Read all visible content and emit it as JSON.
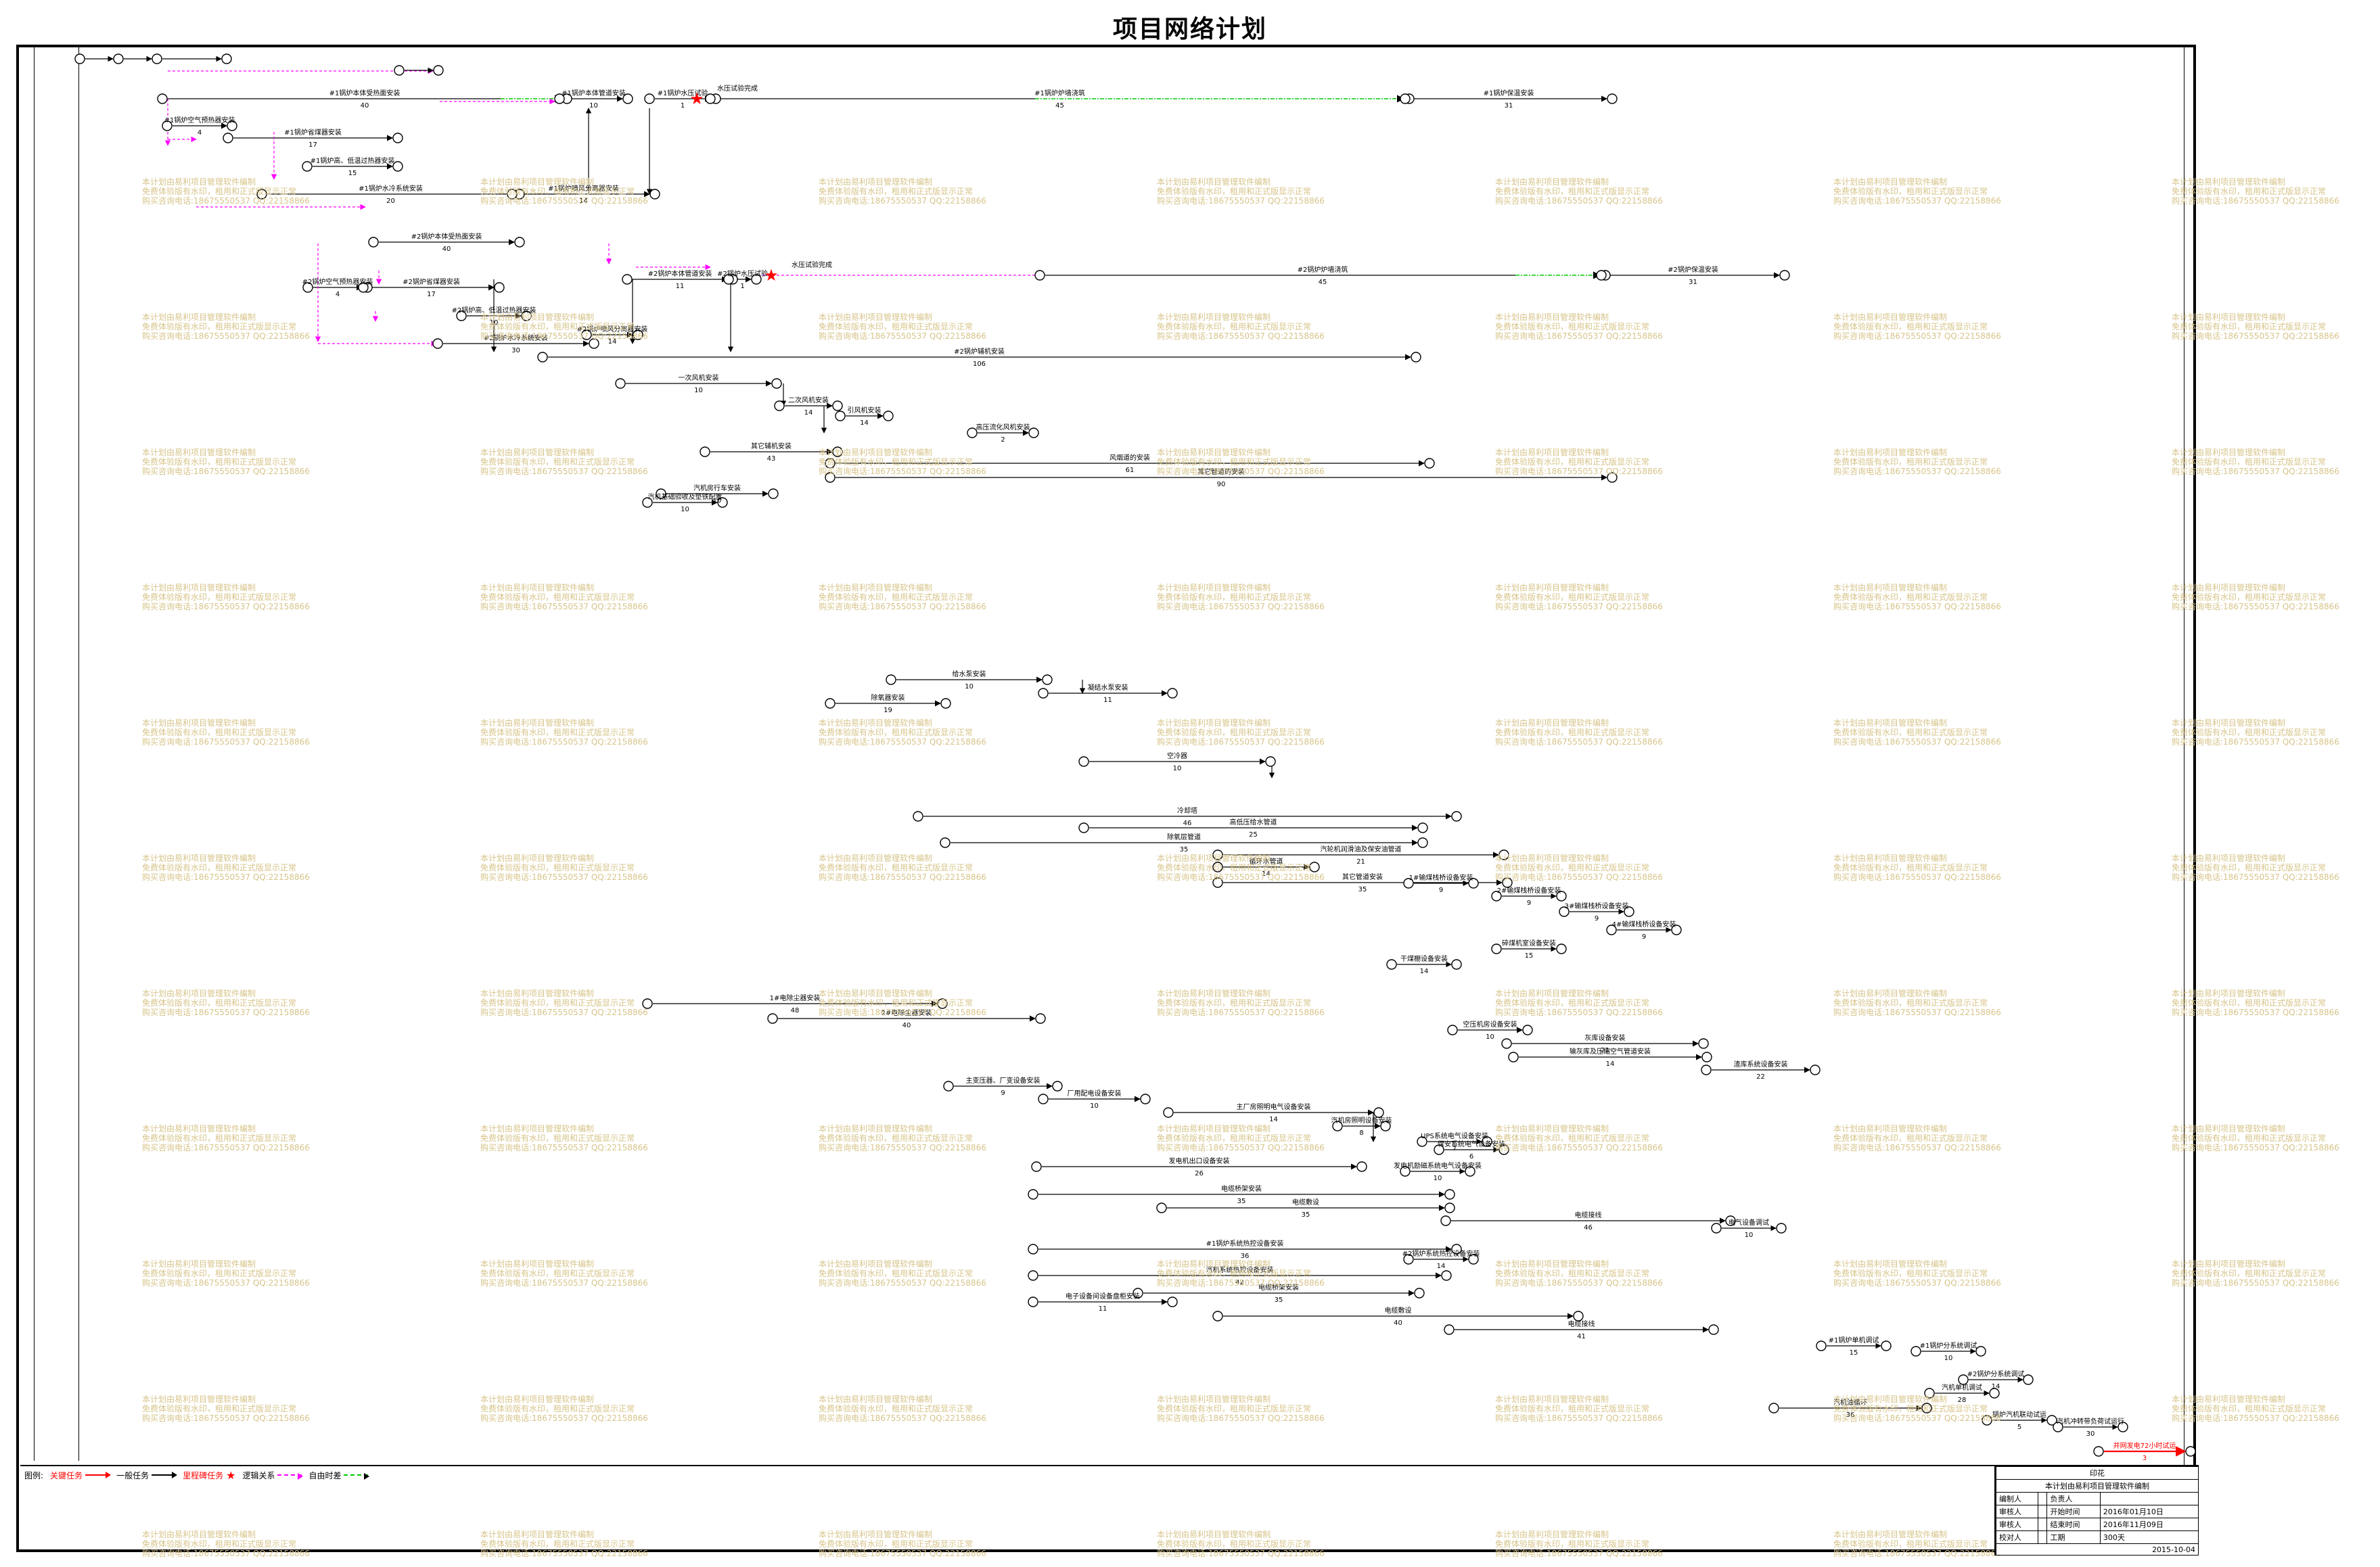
{
  "title": "项目网络计划",
  "watermark": {
    "lines": [
      "本计划由易利项目管理软件编制",
      "免费体验版有水印，租用和正式版显示正常",
      "购买咨询电话:18675550537 QQ:22158866"
    ]
  },
  "tasks": [
    {
      "label": "#1锅炉本体受热面安装",
      "duration": "40"
    },
    {
      "label": "#1锅炉空气预热器安装",
      "duration": "4"
    },
    {
      "label": "#1锅炉省煤器安装",
      "duration": "17"
    },
    {
      "label": "#1锅炉高、低温过热器安装",
      "duration": "15"
    },
    {
      "label": "#1锅炉水冷系统安装",
      "duration": "20"
    },
    {
      "label": "#1锅炉喷风分离器安装",
      "duration": "14"
    },
    {
      "label": "#1锅炉本体管道安装",
      "duration": "10"
    },
    {
      "label": "#1锅炉水压试验",
      "duration": "1"
    },
    {
      "label": "水压试验完成",
      "duration": ""
    },
    {
      "label": "#1锅炉炉墙浇筑",
      "duration": "45"
    },
    {
      "label": "#1锅炉保温安装",
      "duration": "31"
    },
    {
      "label": "#2锅炉本体受热面安装",
      "duration": "40"
    },
    {
      "label": "#2锅炉空气预热器安装",
      "duration": "4"
    },
    {
      "label": "#2锅炉省煤器安装",
      "duration": "17"
    },
    {
      "label": "#2锅炉高、低温过热器安装",
      "duration": "10"
    },
    {
      "label": "#2锅炉水冷系统安装",
      "duration": "30"
    },
    {
      "label": "#2锅炉喷风分离器安装",
      "duration": "14"
    },
    {
      "label": "#2锅炉本体管道安装",
      "duration": "11"
    },
    {
      "label": "#2锅炉水压试验",
      "duration": "1"
    },
    {
      "label": "#2锅炉炉墙浇筑",
      "duration": "45"
    },
    {
      "label": "#2锅炉保温安装",
      "duration": "31"
    },
    {
      "label": "#2锅炉辅机安装",
      "duration": "106"
    },
    {
      "label": "一次风机安装",
      "duration": "10"
    },
    {
      "label": "二次风机安装",
      "duration": "14"
    },
    {
      "label": "引风机安装",
      "duration": "14"
    },
    {
      "label": "高压流化风机安装",
      "duration": "2"
    },
    {
      "label": "其它辅机安装",
      "duration": "43"
    },
    {
      "label": "风烟道的安装",
      "duration": "61"
    },
    {
      "label": "其它管道的安装",
      "duration": "90"
    },
    {
      "label": "汽机房行车安装",
      "duration": "10"
    },
    {
      "label": "汽机基础验收及垫铁配置",
      "duration": "10"
    },
    {
      "label": "给水泵安装",
      "duration": "10"
    },
    {
      "label": "凝结水泵安装",
      "duration": "11"
    },
    {
      "label": "除氧器安装",
      "duration": "19"
    },
    {
      "label": "空冷器",
      "duration": "10"
    },
    {
      "label": "冷却塔",
      "duration": "46"
    },
    {
      "label": "高低压给水管道",
      "duration": "25"
    },
    {
      "label": "除氧层管道",
      "duration": "35"
    },
    {
      "label": "汽轮机润滑油及保安油管道",
      "duration": "21"
    },
    {
      "label": "循环水管道",
      "duration": "14"
    },
    {
      "label": "其它管道安装",
      "duration": "35"
    },
    {
      "label": "1#输煤栈桥设备安装",
      "duration": "9"
    },
    {
      "label": "2#输煤栈桥设备安装",
      "duration": "9"
    },
    {
      "label": "3#输煤栈桥设备安装",
      "duration": "9"
    },
    {
      "label": "4#输煤栈桥设备安装",
      "duration": "9"
    },
    {
      "label": "干煤棚设备安装",
      "duration": "14"
    },
    {
      "label": "碎煤机室设备安装",
      "duration": "15"
    },
    {
      "label": "1#电除尘器安装",
      "duration": "48"
    },
    {
      "label": "2#电除尘器安装",
      "duration": "40"
    },
    {
      "label": "空压机房设备安装",
      "duration": "10"
    },
    {
      "label": "灰库设备安装",
      "duration": "21"
    },
    {
      "label": "输灰库及压缩空气管道安装",
      "duration": "14"
    },
    {
      "label": "渣库系统设备安装",
      "duration": "22"
    },
    {
      "label": "主变压器、厂变设备安装",
      "duration": "9"
    },
    {
      "label": "厂用配电设备安装",
      "duration": "10"
    },
    {
      "label": "主厂房照明电气设备安装",
      "duration": "14"
    },
    {
      "label": "汽机房照明设备安装",
      "duration": "8"
    },
    {
      "label": "UPS系统电气设备安装",
      "duration": "7"
    },
    {
      "label": "保安系统电气设备安装",
      "duration": "6"
    },
    {
      "label": "发电机出口设备安装",
      "duration": "26"
    },
    {
      "label": "发电机励磁系统电气设备安装",
      "duration": "10"
    },
    {
      "label": "电缆桥架安装",
      "duration": "35"
    },
    {
      "label": "电缆敷设",
      "duration": "35"
    },
    {
      "label": "电缆接线",
      "duration": "46"
    },
    {
      "label": "电气设备调试",
      "duration": "10"
    },
    {
      "label": "#1锅炉系统热控设备安装",
      "duration": "36"
    },
    {
      "label": "#2锅炉系统热控设备安装",
      "duration": "14"
    },
    {
      "label": "汽机系统热控设备安装",
      "duration": "42"
    },
    {
      "label": "电子设备间设备盘柜安装",
      "duration": "11"
    },
    {
      "label": "电缆桥架安装",
      "duration": "35"
    },
    {
      "label": "电缆敷设",
      "duration": "40"
    },
    {
      "label": "电缆接线",
      "duration": "41"
    },
    {
      "label": "#1锅炉单机调试",
      "duration": "15"
    },
    {
      "label": "#1锅炉分系统调试",
      "duration": "10"
    },
    {
      "label": "#2锅炉分系统调试",
      "duration": "14"
    },
    {
      "label": "汽机单机调试",
      "duration": "28"
    },
    {
      "label": "汽机油循环",
      "duration": "36"
    },
    {
      "label": "锅炉汽机联动试运",
      "duration": "5"
    },
    {
      "label": "汽机冲转带负荷试运行",
      "duration": "30"
    },
    {
      "label": "并网发电72小时试运",
      "duration": "3"
    }
  ],
  "legend": {
    "label": "图例:",
    "items": [
      {
        "label": "关键任务",
        "color": "#ff0000"
      },
      {
        "label": "一般任务",
        "color": "#000000"
      },
      {
        "label": "里程碑任务",
        "color": "#ff0000"
      },
      {
        "label": "逻辑关系",
        "color": "#ff00ff"
      },
      {
        "label": "自由时差",
        "color": "#00cc00"
      }
    ]
  },
  "info": {
    "header": "印花",
    "subheader": "本计划由易利项目管理软件编制",
    "rows": [
      {
        "k1": "编制人",
        "v1": "",
        "k2": "负责人",
        "v2": ""
      },
      {
        "k1": "审核人",
        "v1": "",
        "k2": "开始时间",
        "v2": "2016年01月10日"
      },
      {
        "k1": "审核人",
        "v1": "",
        "k2": "结束时间",
        "v2": "2016年11月09日"
      },
      {
        "k1": "校对人",
        "v1": "",
        "k2": "工期",
        "v2": "300天"
      }
    ],
    "date": "2015-10-04"
  },
  "colors": {
    "critical": "#ff0000",
    "normal": "#000000",
    "logic": "#ff00ff",
    "float": "#00cc00",
    "watermark": "#d7c48a"
  }
}
